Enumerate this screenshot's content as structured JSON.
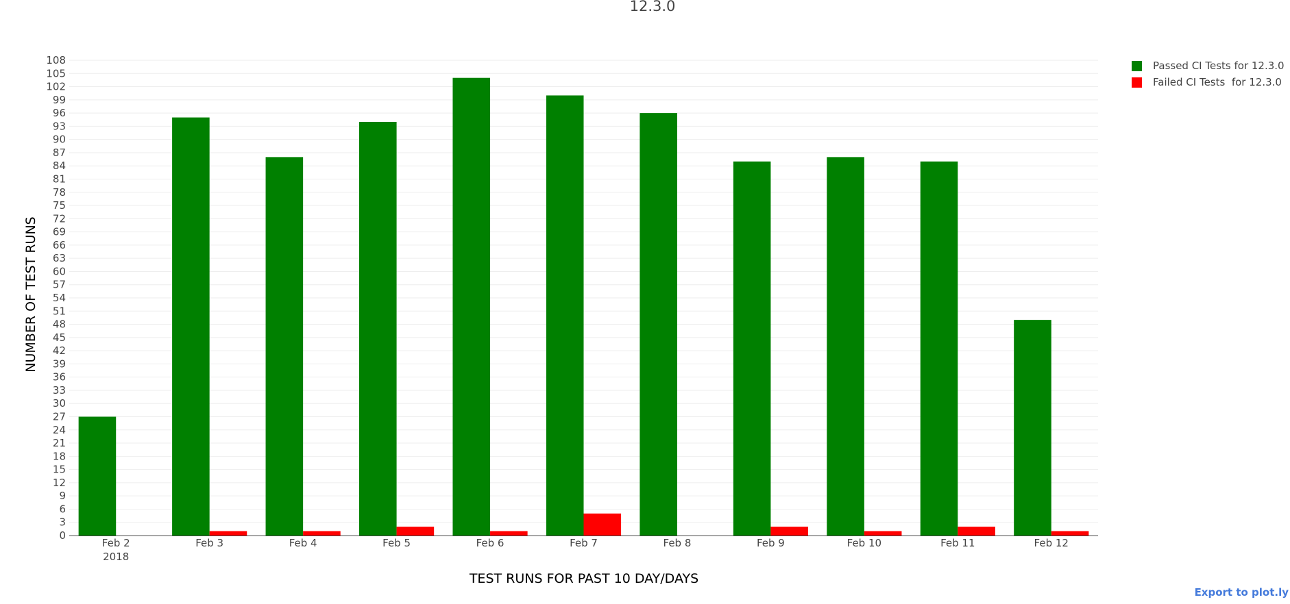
{
  "export_link_label": "Export to plot.ly",
  "chart_data": {
    "type": "bar",
    "title": "12.3.0",
    "xlabel": "TEST RUNS FOR PAST 10 DAY/DAYS",
    "ylabel": "NUMBER OF TEST RUNS",
    "categories": [
      "Feb 2",
      "Feb 3",
      "Feb 4",
      "Feb 5",
      "Feb 6",
      "Feb 7",
      "Feb 8",
      "Feb 9",
      "Feb 10",
      "Feb 11",
      "Feb 12"
    ],
    "x_year_label": "2018",
    "series": [
      {
        "name": "Passed CI Tests for 12.3.0",
        "color": "#008000",
        "values": [
          27,
          95,
          86,
          94,
          104,
          100,
          96,
          85,
          86,
          85,
          49
        ]
      },
      {
        "name": "Failed CI Tests  for 12.3.0",
        "color": "#ff0000",
        "values": [
          0,
          1,
          1,
          2,
          1,
          5,
          0,
          2,
          1,
          2,
          1
        ]
      }
    ],
    "ylim": [
      0,
      108
    ],
    "ytick_step": 3,
    "grid": true,
    "legend_position": "top-right"
  }
}
